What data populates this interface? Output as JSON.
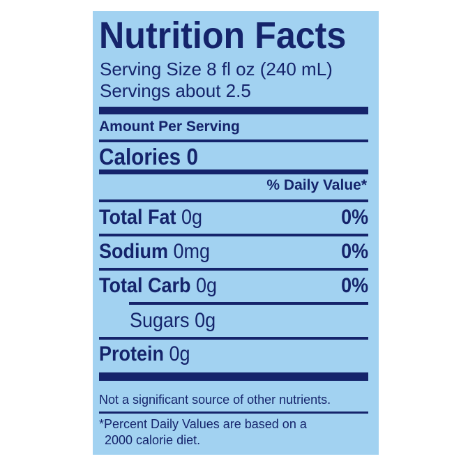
{
  "label": {
    "title": "Nutrition Facts",
    "serving_size": "Serving Size 8 fl oz (240 mL)",
    "servings": "Servings about 2.5",
    "amount_per_serving": "Amount Per Serving",
    "calories": "Calories 0",
    "daily_value_header": "% Daily Value*",
    "nutrients": [
      {
        "name": "Total Fat",
        "amount": "0g",
        "dv": "0%"
      },
      {
        "name": "Sodium",
        "amount": "0mg",
        "dv": "0%"
      },
      {
        "name": "Total Carb",
        "amount": "0g",
        "dv": "0%"
      },
      {
        "name": "Sugars",
        "amount": "0g",
        "dv": ""
      },
      {
        "name": "Protein",
        "amount": "0g",
        "dv": ""
      }
    ],
    "note": "Not a significant source of other nutrients.",
    "footnote_line1": "*Percent Daily Values are based on a",
    "footnote_line2": "2000 calorie diet."
  },
  "colors": {
    "background": "#a2d2f1",
    "ink": "#15246b"
  }
}
